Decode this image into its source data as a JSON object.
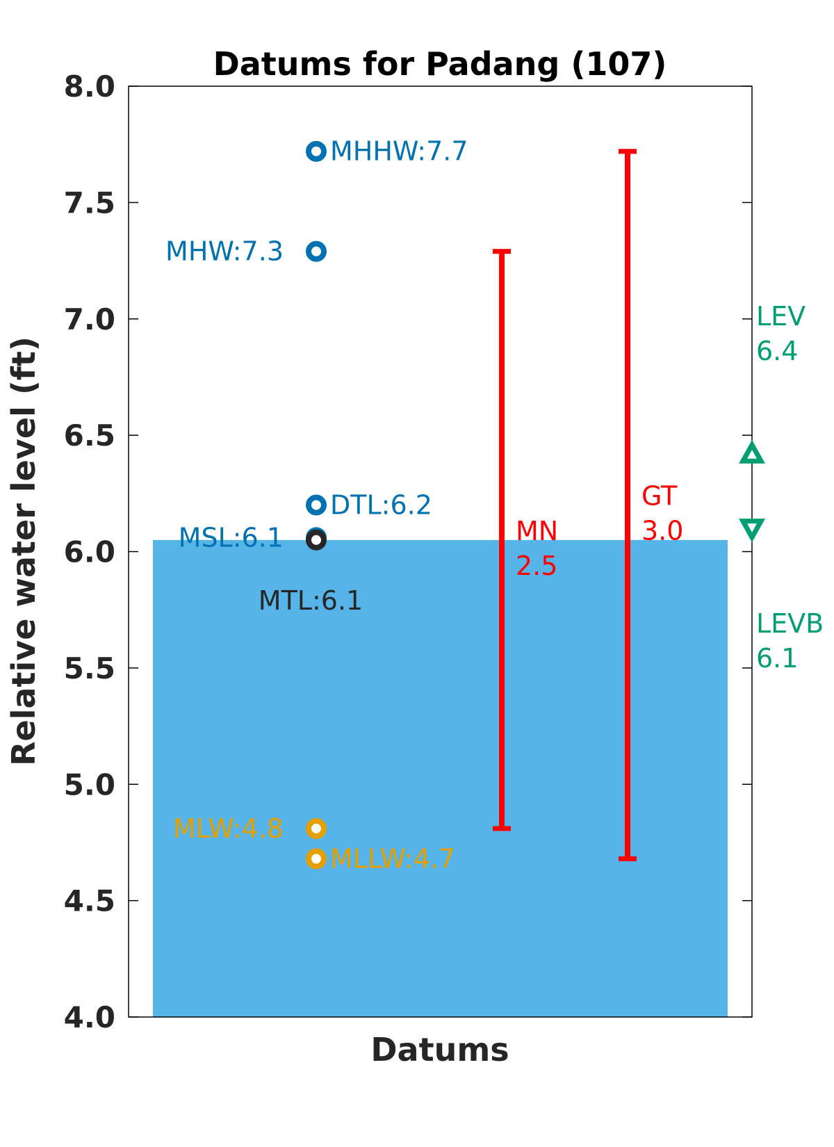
{
  "chart_data": {
    "type": "bar",
    "title": "Datums for Padang (107)",
    "xlabel": "Datums",
    "ylabel": "Relative water level (ft)",
    "ylim": [
      4.0,
      8.0
    ],
    "yticks": [
      "4.0",
      "4.5",
      "5.0",
      "5.5",
      "6.0",
      "6.5",
      "7.0",
      "7.5",
      "8.0"
    ],
    "grid": false,
    "bar": {
      "value": 6.05,
      "color": "#56B4E9"
    },
    "datums": [
      {
        "name": "MHHW",
        "value": 7.72,
        "label": "MHHW:7.7",
        "color": "#0072B2",
        "label_side": "right"
      },
      {
        "name": "MHW",
        "value": 7.29,
        "label": "MHW:7.3",
        "color": "#0072B2",
        "label_side": "left"
      },
      {
        "name": "DTL",
        "value": 6.2,
        "label": "DTL:6.2",
        "color": "#0072B2",
        "label_side": "right"
      },
      {
        "name": "MSL",
        "value": 6.06,
        "label": "MSL:6.1",
        "color": "#0072B2",
        "label_side": "left"
      },
      {
        "name": "MTL",
        "value": 6.05,
        "label": "MTL:6.1",
        "color": "#262626",
        "label_side": "below"
      },
      {
        "name": "MLW",
        "value": 4.81,
        "label": "MLW:4.8",
        "color": "#E69F00",
        "label_side": "left"
      },
      {
        "name": "MLLW",
        "value": 4.68,
        "label": "MLLW:4.7",
        "color": "#E69F00",
        "label_side": "right"
      }
    ],
    "ranges": [
      {
        "name": "MN",
        "low": 4.81,
        "high": 7.29,
        "label_name": "MN",
        "label_value": "2.5",
        "color": "#FF0000"
      },
      {
        "name": "GT",
        "low": 4.68,
        "high": 7.72,
        "label_name": "GT",
        "label_value": "3.0",
        "color": "#FF0000"
      }
    ],
    "levels": [
      {
        "name": "LEV",
        "value": 6.42,
        "marker": "triangle-up",
        "label_name": "LEV",
        "label_value": "6.4",
        "color": "#009E73"
      },
      {
        "name": "LEVB",
        "value": 6.1,
        "marker": "triangle-down",
        "label_name": "LEVB",
        "label_value": "6.1",
        "color": "#009E73"
      }
    ]
  }
}
